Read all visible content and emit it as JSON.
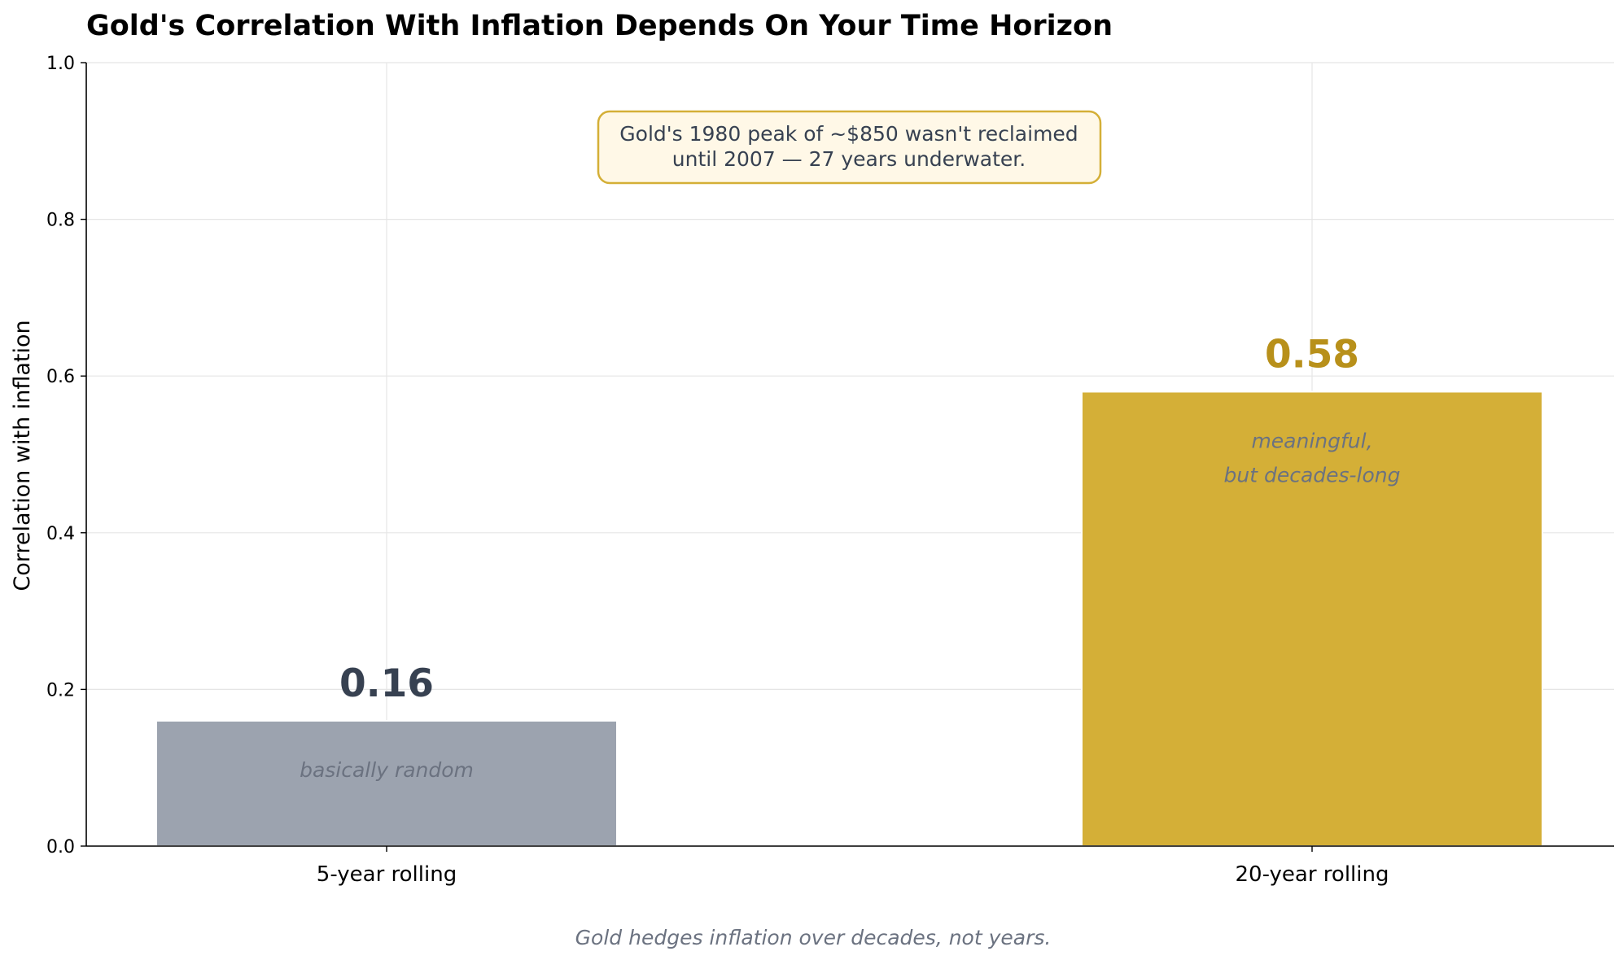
{
  "chart_data": {
    "type": "bar",
    "title": "Gold's Correlation With Inflation Depends On Your Time Horizon",
    "ylabel": "Correlation with inflation",
    "xlabel": "",
    "categories": [
      "5-year rolling",
      "20-year rolling"
    ],
    "values": [
      0.16,
      0.58
    ],
    "value_labels": [
      "0.16",
      "0.58"
    ],
    "bar_annotations": [
      [
        "basically random"
      ],
      [
        "meaningful,",
        "but decades-long"
      ]
    ],
    "ylim": [
      0,
      1.0
    ],
    "yticks": [
      0.0,
      0.2,
      0.4,
      0.6,
      0.8,
      1.0
    ],
    "ytick_labels": [
      "0.0",
      "0.2",
      "0.4",
      "0.6",
      "0.8",
      "1.0"
    ],
    "grid": true,
    "colors": {
      "bars": [
        "#9ca3af",
        "#d4af37"
      ],
      "value_labels": [
        "#374151",
        "#b8901a"
      ],
      "annotation_border": "#d4af37",
      "annotation_fill": "#fff8e7"
    },
    "annotation": {
      "lines": [
        "Gold's 1980 peak of ~$850 wasn't reclaimed",
        "until 2007 — 27 years underwater."
      ]
    },
    "footer": "Gold hedges inflation over decades, not years."
  }
}
